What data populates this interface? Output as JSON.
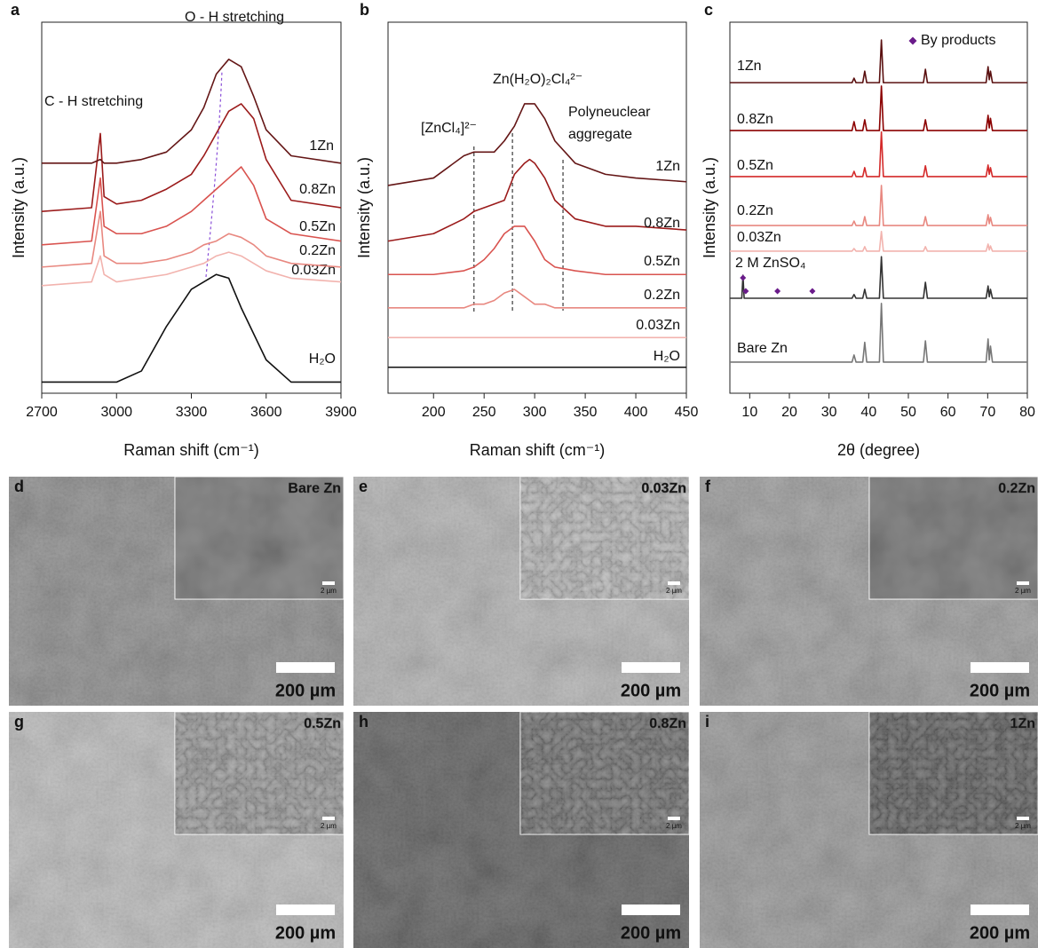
{
  "chart_data": [
    {
      "type": "line",
      "letter": "a",
      "xlabel": "Raman shift (cm⁻¹)",
      "ylabel": "Intensity (a.u.)",
      "annotations": [
        "C - H stretching",
        "O - H stretching"
      ],
      "x": [
        2700,
        2900,
        2935,
        2950,
        3000,
        3100,
        3200,
        3300,
        3350,
        3400,
        3450,
        3500,
        3550,
        3600,
        3700,
        3900
      ],
      "xlim": [
        2700,
        3900
      ],
      "xticks": [
        2700,
        3000,
        3300,
        3600,
        3900
      ],
      "ylim": [
        0,
        100
      ],
      "series": [
        {
          "name": "H₂O",
          "color": "#111111",
          "values": [
            3,
            3,
            3,
            3,
            3,
            6,
            18,
            28,
            30,
            32,
            31,
            23,
            16,
            9,
            3,
            3
          ]
        },
        {
          "name": "0.03Zn",
          "color": "#f2b3ae",
          "values": [
            29,
            30,
            37,
            32,
            30,
            31,
            32,
            34,
            35,
            37,
            38,
            37,
            35,
            33,
            31,
            30
          ]
        },
        {
          "name": "0.2Zn",
          "color": "#e88880",
          "values": [
            34,
            35,
            49,
            37,
            35,
            35,
            36,
            38,
            40,
            41,
            43,
            42,
            40,
            37,
            35,
            34
          ]
        },
        {
          "name": "0.5Zn",
          "color": "#d9534f",
          "values": [
            40,
            41,
            58,
            45,
            43,
            43,
            45,
            49,
            52,
            55,
            58,
            61,
            56,
            47,
            43,
            41
          ]
        },
        {
          "name": "0.8Zn",
          "color": "#9b1b1b",
          "values": [
            49,
            50,
            70,
            53,
            51,
            52,
            55,
            59,
            64,
            70,
            76,
            78,
            74,
            63,
            52,
            50
          ]
        },
        {
          "name": "1Zn",
          "color": "#641616",
          "values": [
            62,
            62,
            63,
            62,
            62,
            63,
            65,
            71,
            77,
            86,
            90,
            88,
            80,
            71,
            64,
            62
          ]
        }
      ]
    },
    {
      "type": "line",
      "letter": "b",
      "xlabel": "Raman shift (cm⁻¹)",
      "ylabel": "Intensity (a.u.)",
      "annotations": [
        "[ZnCl₄]²⁻",
        "Zn(H₂O)₂Cl₄²⁻",
        "Polyneuclear",
        "aggregate"
      ],
      "reference_lines": [
        240,
        278,
        328
      ],
      "x": [
        155,
        200,
        230,
        240,
        250,
        260,
        270,
        280,
        290,
        295,
        300,
        310,
        320,
        340,
        370,
        400,
        450
      ],
      "xlim": [
        155,
        450
      ],
      "xticks": [
        200,
        250,
        300,
        350,
        400,
        450
      ],
      "ylim": [
        0,
        100
      ],
      "series": [
        {
          "name": "H₂O",
          "color": "#111111",
          "values": [
            7,
            7,
            7,
            7,
            7,
            7,
            7,
            7,
            7,
            7,
            7,
            7,
            7,
            7,
            7,
            7,
            7
          ]
        },
        {
          "name": "0.03Zn",
          "color": "#f2b3ae",
          "values": [
            15,
            15,
            15,
            15,
            15,
            15,
            15,
            15,
            15,
            15,
            15,
            15,
            15,
            15,
            15,
            15,
            15
          ]
        },
        {
          "name": "0.2Zn",
          "color": "#e88880",
          "values": [
            23,
            23,
            23,
            24,
            24,
            25,
            27,
            28,
            26,
            25,
            24,
            24,
            23,
            23,
            23,
            23,
            23
          ]
        },
        {
          "name": "0.5Zn",
          "color": "#d9534f",
          "values": [
            32,
            32,
            33,
            34,
            36,
            39,
            43,
            45,
            45,
            43,
            41,
            36,
            34,
            33,
            32,
            32,
            32
          ]
        },
        {
          "name": "0.8Zn",
          "color": "#9b1b1b",
          "values": [
            41,
            43,
            47,
            49,
            50,
            51,
            52,
            59,
            62,
            63,
            62,
            58,
            52,
            47,
            45,
            45,
            44
          ]
        },
        {
          "name": "1Zn",
          "color": "#641616",
          "values": [
            56,
            58,
            64,
            65,
            65,
            65,
            68,
            72,
            78,
            78,
            78,
            74,
            68,
            62,
            59,
            58,
            57
          ]
        }
      ]
    },
    {
      "type": "line",
      "letter": "c",
      "xlabel": "2θ (degree)",
      "ylabel": "Intensity (a.u.)",
      "x": [
        5,
        8.0,
        8.3,
        8.6,
        35.8,
        36.3,
        36.8,
        38.5,
        39,
        39.5,
        42.7,
        43.2,
        43.7,
        53.8,
        54.3,
        54.8,
        69.6,
        70.1,
        70.4,
        70.7,
        71.2,
        80
      ],
      "xlim": [
        5,
        80
      ],
      "xticks": [
        10,
        20,
        30,
        40,
        50,
        60,
        70,
        80
      ],
      "ylim": [
        0,
        100
      ],
      "series": [
        {
          "name": "Bare Zn",
          "color": "#777777",
          "values": [
            8.4,
            8.4,
            8.4,
            8.4,
            8.4,
            10.3,
            8.4,
            8.4,
            13.7,
            8.4,
            8.4,
            24.2,
            8.4,
            8.4,
            14.1,
            8.4,
            8.4,
            14.6,
            9.0,
            12.7,
            8.4,
            8.4
          ]
        },
        {
          "name": "2 M ZnSO₄",
          "color": "#333333",
          "values": [
            25.6,
            25.6,
            31.8,
            25.6,
            25.6,
            26.6,
            25.6,
            25.6,
            28.0,
            25.6,
            25.6,
            36.8,
            25.6,
            25.6,
            29.9,
            25.6,
            25.6,
            28.9,
            26.0,
            28.0,
            25.6,
            25.6
          ]
        },
        {
          "name": "0.03Zn",
          "color": "#f2b3ae",
          "values": [
            38.3,
            38.3,
            38.3,
            38.3,
            38.3,
            39.0,
            38.3,
            38.3,
            39.5,
            38.3,
            38.3,
            43.6,
            38.3,
            38.3,
            39.5,
            38.3,
            38.3,
            40.2,
            38.6,
            39.7,
            38.3,
            38.3
          ]
        },
        {
          "name": "0.2Zn",
          "color": "#e88880",
          "values": [
            45.2,
            45.2,
            45.2,
            45.2,
            45.2,
            46.4,
            45.2,
            45.2,
            47.6,
            45.2,
            45.2,
            56.0,
            45.2,
            45.2,
            47.6,
            45.2,
            45.2,
            48.1,
            45.7,
            47.4,
            45.2,
            45.2
          ]
        },
        {
          "name": "0.5Zn",
          "color": "#d42a2a",
          "values": [
            58.4,
            58.4,
            58.4,
            58.4,
            58.4,
            59.8,
            58.4,
            58.4,
            60.8,
            58.4,
            58.4,
            70.4,
            58.4,
            58.4,
            61.3,
            58.4,
            58.4,
            61.5,
            59.0,
            60.8,
            58.4,
            58.4
          ]
        },
        {
          "name": "0.8Zn",
          "color": "#8b0000",
          "values": [
            70.8,
            70.8,
            70.8,
            70.8,
            70.8,
            73.2,
            70.8,
            70.8,
            73.7,
            70.8,
            70.8,
            82.8,
            70.8,
            70.8,
            73.7,
            70.8,
            70.8,
            74.9,
            71.5,
            74.1,
            70.8,
            70.8
          ]
        },
        {
          "name": "1Zn",
          "color": "#5a1010",
          "values": [
            83.7,
            83.7,
            83.7,
            83.7,
            83.7,
            84.9,
            83.7,
            83.7,
            86.8,
            83.7,
            83.7,
            95.2,
            83.7,
            83.7,
            87.3,
            83.7,
            83.7,
            88.0,
            84.5,
            86.8,
            83.7,
            83.7
          ]
        },
        {
          "name": "By products",
          "type": "scatter",
          "marker": "diamond",
          "color": "#6a1b8a",
          "x": [
            8.3,
            9.0,
            17.0,
            25.8
          ],
          "values": [
            31.1,
            27.5,
            27.5,
            27.5
          ]
        }
      ]
    }
  ],
  "panels": [
    {
      "letter": "d",
      "inset_label": "Bare Zn",
      "scale_bar": "200 µm",
      "inset_scale_bar": "2 µm"
    },
    {
      "letter": "e",
      "inset_label": "0.03Zn",
      "scale_bar": "200 µm",
      "inset_scale_bar": "2 µm"
    },
    {
      "letter": "f",
      "inset_label": "0.2Zn",
      "scale_bar": "200 µm",
      "inset_scale_bar": "2 µm"
    },
    {
      "letter": "g",
      "inset_label": "0.5Zn",
      "scale_bar": "200 µm",
      "inset_scale_bar": "2 µm"
    },
    {
      "letter": "h",
      "inset_label": "0.8Zn",
      "scale_bar": "200 µm",
      "inset_scale_bar": "2 µm"
    },
    {
      "letter": "i",
      "inset_label": "1Zn",
      "scale_bar": "200 µm",
      "inset_scale_bar": "2 µm"
    }
  ]
}
